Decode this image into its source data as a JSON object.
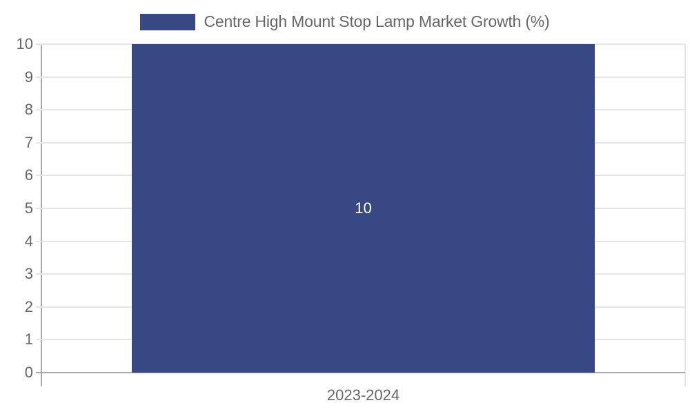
{
  "chart_data": {
    "type": "bar",
    "title": "",
    "categories": [
      "2023-2024"
    ],
    "series": [
      {
        "name": "Centre High Mount Stop Lamp Market Growth (%)",
        "values": [
          10
        ],
        "color": "#384884"
      }
    ],
    "data_labels": [
      "10"
    ],
    "xlabel": "",
    "ylabel": "",
    "ylim": [
      0,
      10
    ],
    "yticks": [
      "0",
      "1",
      "2",
      "3",
      "4",
      "5",
      "6",
      "7",
      "8",
      "9",
      "10"
    ],
    "grid": true,
    "legend_position": "top"
  },
  "legend": {
    "label": "Centre High Mount Stop Lamp Market Growth (%)",
    "color": "#384884"
  }
}
